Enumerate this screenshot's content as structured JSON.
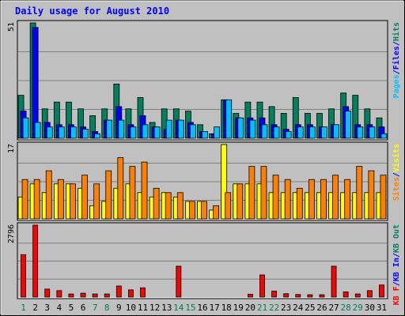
{
  "colors": {
    "background": "#c0c0c0",
    "title": "#0000ff",
    "hits": "#00805c",
    "files": "#0000ff",
    "pages": "#00c0ff",
    "visits": "#ffff00",
    "sites": "#ff8000",
    "kbout": "#00805c",
    "kbin": "#0000ff",
    "kbf": "#ff0000",
    "weekend_label": "#00805c",
    "weekday_label": "#000000",
    "bar_outline": "#000000"
  },
  "chart_data": {
    "type": "bar",
    "title": "Daily usage for August 2010",
    "categories": [
      "1",
      "2",
      "3",
      "4",
      "5",
      "6",
      "7",
      "8",
      "9",
      "10",
      "11",
      "12",
      "13",
      "14",
      "15",
      "16",
      "17",
      "18",
      "19",
      "20",
      "21",
      "22",
      "23",
      "24",
      "25",
      "26",
      "27",
      "28",
      "29",
      "30",
      "31"
    ],
    "weekend_days": [
      "1",
      "7",
      "8",
      "14",
      "15",
      "21",
      "22",
      "28",
      "29"
    ],
    "panels": [
      {
        "name": "hits-files-pages",
        "ymax_label": "51",
        "ymax": 51,
        "legend": [
          {
            "text": "Pages",
            "color_key": "pages"
          },
          {
            "text": "/",
            "color_key": "title"
          },
          {
            "text": "Files",
            "color_key": "files"
          },
          {
            "text": "/",
            "color_key": "title"
          },
          {
            "text": "Hits",
            "color_key": "hits"
          }
        ],
        "series": [
          {
            "name": "Hits",
            "color_key": "hits",
            "values": [
              19,
              51,
              13,
              16,
              16,
              13,
              10,
              13,
              24,
              13,
              18,
              7,
              13,
              13,
              12,
              6,
              2,
              17,
              11,
              16,
              16,
              14,
              11,
              18,
              11,
              11,
              13,
              20,
              19,
              13,
              9
            ]
          },
          {
            "name": "Files",
            "color_key": "files",
            "values": [
              12,
              49,
              7,
              6,
              6,
              5,
              3,
              8,
              14,
              6,
              10,
              5,
              4,
              8,
              7,
              3,
              2,
              17,
              9,
              9,
              9,
              6,
              4,
              6,
              6,
              5,
              6,
              14,
              6,
              6,
              5
            ]
          },
          {
            "name": "Pages",
            "color_key": "pages",
            "values": [
              9,
              7,
              5,
              5,
              5,
              4,
              2,
              8,
              8,
              5,
              6,
              5,
              8,
              8,
              6,
              3,
              5,
              17,
              9,
              8,
              6,
              5,
              3,
              5,
              5,
              5,
              6,
              12,
              5,
              5,
              2
            ]
          }
        ]
      },
      {
        "name": "visits-sites",
        "ymax_label": "17",
        "ymax": 17,
        "legend": [
          {
            "text": "Sites",
            "color_key": "sites"
          },
          {
            "text": "/",
            "color_key": "title"
          },
          {
            "text": "Visits",
            "color_key": "visits"
          }
        ],
        "series": [
          {
            "name": "Visits",
            "color_key": "visits",
            "values": [
              5,
              8,
              6,
              8,
              8,
              7,
              3,
              4,
              7,
              8,
              6,
              5,
              6,
              5,
              4,
              4,
              2,
              17,
              8,
              8,
              8,
              6,
              6,
              6,
              6,
              6,
              6,
              6,
              6,
              6,
              6
            ]
          },
          {
            "name": "Sites",
            "color_key": "sites",
            "values": [
              9,
              9,
              11,
              9,
              8,
              10,
              8,
              11,
              14,
              12,
              13,
              7,
              6,
              6,
              4,
              4,
              3,
              6,
              8,
              12,
              12,
              10,
              9,
              7,
              9,
              9,
              10,
              9,
              12,
              11,
              10
            ]
          }
        ]
      },
      {
        "name": "kb",
        "ymax_label": "2796",
        "ymax": 2796,
        "legend": [
          {
            "text": "KB F",
            "color_key": "kbf"
          },
          {
            "text": "/",
            "color_key": "title"
          },
          {
            "text": "KB In",
            "color_key": "kbin"
          },
          {
            "text": "/",
            "color_key": "title"
          },
          {
            "text": "KB Out",
            "color_key": "kbout"
          }
        ],
        "series": [
          {
            "name": "KB F",
            "color_key": "kbf",
            "values": [
              1650,
              2796,
              310,
              250,
              120,
              150,
              120,
              120,
              430,
              280,
              360,
              0,
              0,
              1200,
              0,
              0,
              0,
              0,
              0,
              110,
              860,
              230,
              130,
              100,
              90,
              90,
              1200,
              200,
              120,
              250,
              470
            ]
          }
        ]
      }
    ]
  }
}
